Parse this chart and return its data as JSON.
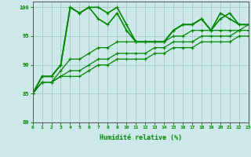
{
  "bg_color": "#cce8e8",
  "grid_color": "#aacccc",
  "line_color": "#008800",
  "xlabel": "Humidité relative (%)",
  "xlim": [
    0,
    23
  ],
  "ylim": [
    80,
    101
  ],
  "yticks": [
    80,
    85,
    90,
    95,
    100
  ],
  "xticks": [
    0,
    1,
    2,
    3,
    4,
    5,
    6,
    7,
    8,
    9,
    10,
    11,
    12,
    13,
    14,
    15,
    16,
    17,
    18,
    19,
    20,
    21,
    22,
    23
  ],
  "series": [
    {
      "y": [
        85,
        88,
        88,
        90,
        100,
        99,
        100,
        100,
        99,
        100,
        97,
        94,
        94,
        94,
        94,
        96,
        97,
        97,
        98,
        96,
        98,
        99,
        97,
        97
      ],
      "lw": 1.2
    },
    {
      "y": [
        85,
        88,
        88,
        90,
        100,
        99,
        100,
        98,
        97,
        99,
        96,
        94,
        94,
        94,
        94,
        96,
        97,
        97,
        98,
        96,
        99,
        98,
        97,
        97
      ],
      "lw": 1.2
    },
    {
      "y": [
        85,
        87,
        87,
        89,
        91,
        91,
        92,
        93,
        93,
        94,
        94,
        94,
        94,
        94,
        94,
        95,
        95,
        96,
        96,
        96,
        96,
        96,
        96,
        97
      ],
      "lw": 0.9
    },
    {
      "y": [
        85,
        87,
        87,
        88,
        89,
        89,
        90,
        91,
        91,
        92,
        92,
        92,
        92,
        93,
        93,
        94,
        94,
        94,
        95,
        95,
        95,
        95,
        96,
        96
      ],
      "lw": 0.9
    },
    {
      "y": [
        85,
        87,
        87,
        88,
        88,
        88,
        89,
        90,
        90,
        91,
        91,
        91,
        91,
        92,
        92,
        93,
        93,
        93,
        94,
        94,
        94,
        94,
        95,
        95
      ],
      "lw": 0.9
    }
  ]
}
